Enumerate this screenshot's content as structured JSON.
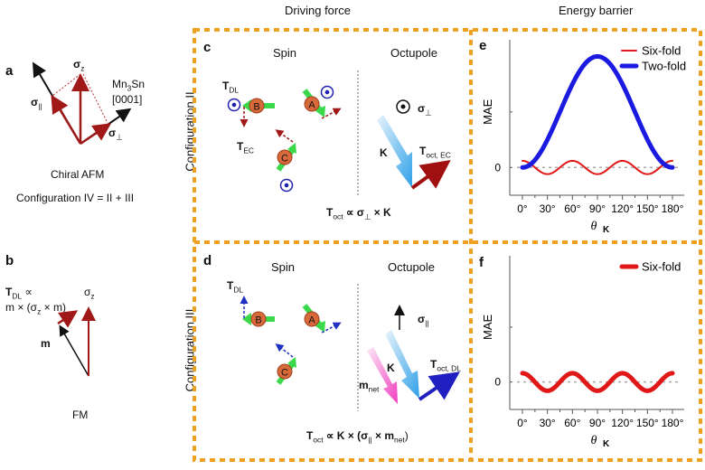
{
  "column_headers": {
    "driving_force": "Driving force",
    "energy_barrier": "Energy barrier"
  },
  "row_labels": {
    "config_ii": "Configuration II",
    "config_iii": "Configuration III"
  },
  "panel_a": {
    "letter": "a",
    "sigma_z": "σ",
    "sigma_z_sub": "z",
    "sigma_par": "σ",
    "sigma_par_sub": "||",
    "sigma_perp": "σ",
    "sigma_perp_sub": "⊥",
    "material": "Mn",
    "material_sub": "3",
    "material_tail": "Sn",
    "direction": "[0001]",
    "caption": "Chiral AFM",
    "configuration": "Configuration IV = II + III",
    "colors": {
      "vector": "#a01818",
      "axis": "#111111"
    }
  },
  "panel_b": {
    "letter": "b",
    "torque_head": "T",
    "torque_sub": "DL",
    "torque_prop": " ∝",
    "formula": "m × (σ",
    "formula_sub": "z",
    "formula_tail": " × m)",
    "sigma_z": "σ",
    "sigma_z_sub": "z",
    "m_label": "m",
    "caption": "FM"
  },
  "panel_c": {
    "letter": "c",
    "spin_title": "Spin",
    "octupole_title": "Octupole",
    "t_dl": "T",
    "t_dl_sub": "DL",
    "t_ec": "T",
    "t_ec_sub": "EC",
    "atoms": [
      "A",
      "B",
      "C"
    ],
    "sigma_label": "σ",
    "sigma_sub": "⊥",
    "k_label": "K",
    "t_oct": "T",
    "t_oct_sub": "oct, EC",
    "formula_head": "T",
    "formula_sub": "oct",
    "formula_tail": " ∝ σ",
    "formula_sigma_sub": "⊥",
    "formula_end": " × K"
  },
  "panel_d": {
    "letter": "d",
    "spin_title": "Spin",
    "octupole_title": "Octupole",
    "t_dl": "T",
    "t_dl_sub": "DL",
    "atoms": [
      "A",
      "B",
      "C"
    ],
    "sigma_label": "σ",
    "sigma_sub": "||",
    "k_label": "K",
    "m_label": "m",
    "m_sub": "net",
    "t_oct": "T",
    "t_oct_sub": "oct, DL",
    "formula_head": "T",
    "formula_sub": "oct",
    "formula_mid": " ∝ K × (σ",
    "formula_sigma_sub": "||",
    "formula_m": " × m",
    "formula_m_sub": "net",
    "formula_end": ")"
  },
  "colors": {
    "frame": "#f0a020",
    "dark_red": "#a01818",
    "blue_dot": "#2020b0",
    "atom": "#d8693a",
    "spin_arrow": "#3ad84a",
    "dl_arrow": "#2030c0",
    "k_arrow": "#40a8e8",
    "m_arrow": "#f040c0",
    "red_curve": "#e01818",
    "blue_curve": "#1a1ae0"
  },
  "chart_data": [
    {
      "panel": "e",
      "type": "line",
      "title": "",
      "xlabel": "θ",
      "xlabel_sub": "K",
      "ylabel": "MAE",
      "x_ticks": [
        "0°",
        "30°",
        "60°",
        "90°",
        "120°",
        "150°",
        "180°"
      ],
      "x_range": [
        0,
        180
      ],
      "y_ticks": [
        "0"
      ],
      "y_range": [
        -0.25,
        1.15
      ],
      "zero_line": true,
      "legend_position": "top-right",
      "series": [
        {
          "name": "Six-fold",
          "function": "0.06*cos(6θ)",
          "amplitude": 0.06,
          "period_deg": 60,
          "color": "#e01818",
          "weight": "thin",
          "x": [
            0,
            30,
            60,
            90,
            120,
            150,
            180
          ],
          "y": [
            0.06,
            -0.06,
            0.06,
            -0.06,
            0.06,
            -0.06,
            0.06
          ]
        },
        {
          "name": "Two-fold",
          "function": "sin²(θ)",
          "amplitude": 1.0,
          "period_deg": 180,
          "color": "#1a1ae0",
          "weight": "thick",
          "x": [
            0,
            30,
            60,
            90,
            120,
            150,
            180
          ],
          "y": [
            0,
            0.25,
            0.75,
            1.0,
            0.75,
            0.25,
            0
          ]
        }
      ]
    },
    {
      "panel": "f",
      "type": "line",
      "title": "",
      "xlabel": "θ",
      "xlabel_sub": "K",
      "ylabel": "MAE",
      "x_ticks": [
        "0°",
        "30°",
        "60°",
        "90°",
        "120°",
        "150°",
        "180°"
      ],
      "x_range": [
        0,
        180
      ],
      "y_ticks": [
        "0"
      ],
      "y_range": [
        -0.25,
        1.15
      ],
      "zero_line": true,
      "legend_position": "top-right",
      "series": [
        {
          "name": "Six-fold",
          "function": "0.08*cos(6θ)",
          "amplitude": 0.08,
          "period_deg": 60,
          "color": "#e01818",
          "weight": "thick",
          "x": [
            0,
            30,
            60,
            90,
            120,
            150,
            180
          ],
          "y": [
            0.08,
            -0.08,
            0.08,
            -0.08,
            0.08,
            -0.08,
            0.08
          ]
        }
      ]
    }
  ]
}
